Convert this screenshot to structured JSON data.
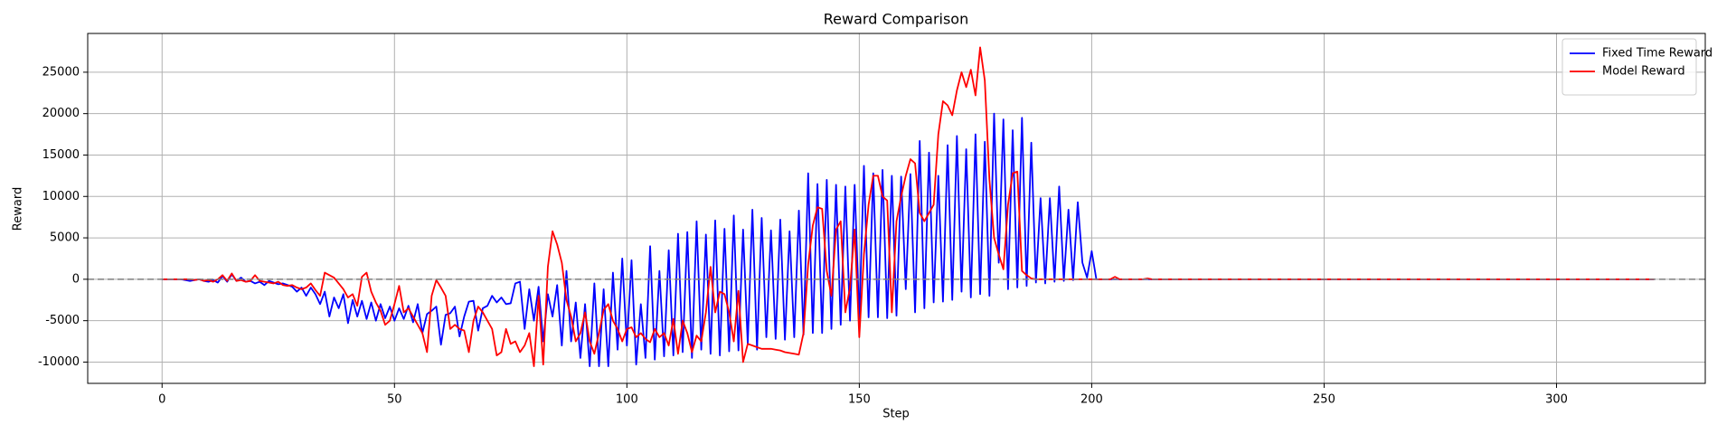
{
  "chart_data": {
    "type": "line",
    "title": "Reward Comparison",
    "x_label": "Step",
    "y_label": "Reward",
    "xlim": [
      -16,
      332
    ],
    "ylim": [
      -12570,
      29680
    ],
    "xticks": [
      0,
      50,
      100,
      150,
      200,
      250,
      300
    ],
    "yticks": [
      -10000,
      -5000,
      0,
      5000,
      10000,
      15000,
      20000,
      25000
    ],
    "grid": true,
    "legend": "upper right",
    "hline": 0,
    "x": [
      0,
      1,
      2,
      3,
      4,
      5,
      6,
      7,
      8,
      9,
      10,
      11,
      12,
      13,
      14,
      15,
      16,
      17,
      18,
      19,
      20,
      21,
      22,
      23,
      24,
      25,
      26,
      27,
      28,
      29,
      30,
      31,
      32,
      33,
      34,
      35,
      36,
      37,
      38,
      39,
      40,
      41,
      42,
      43,
      44,
      45,
      46,
      47,
      48,
      49,
      50,
      51,
      52,
      53,
      54,
      55,
      56,
      57,
      58,
      59,
      60,
      61,
      62,
      63,
      64,
      65,
      66,
      67,
      68,
      69,
      70,
      71,
      72,
      73,
      74,
      75,
      76,
      77,
      78,
      79,
      80,
      81,
      82,
      83,
      84,
      85,
      86,
      87,
      88,
      89,
      90,
      91,
      92,
      93,
      94,
      95,
      96,
      97,
      98,
      99,
      100,
      101,
      102,
      103,
      104,
      105,
      106,
      107,
      108,
      109,
      110,
      111,
      112,
      113,
      114,
      115,
      116,
      117,
      118,
      119,
      120,
      121,
      122,
      123,
      124,
      125,
      126,
      127,
      128,
      129,
      130,
      131,
      132,
      133,
      134,
      135,
      136,
      137,
      138,
      139,
      140,
      141,
      142,
      143,
      144,
      145,
      146,
      147,
      148,
      149,
      150,
      151,
      152,
      153,
      154,
      155,
      156,
      157,
      158,
      159,
      160,
      161,
      162,
      163,
      164,
      165,
      166,
      167,
      168,
      169,
      170,
      171,
      172,
      173,
      174,
      175,
      176,
      177,
      178,
      179,
      180,
      181,
      182,
      183,
      184,
      185,
      186,
      187,
      188,
      189,
      190,
      191,
      192,
      193,
      194,
      195,
      196,
      197,
      198,
      199,
      200,
      201,
      202,
      203,
      204,
      205,
      206,
      207,
      208,
      209,
      210,
      211,
      212,
      213,
      214,
      215,
      216,
      217,
      218,
      219,
      220,
      221,
      222,
      223,
      224,
      225,
      226,
      227,
      228,
      229,
      230,
      231,
      232,
      233,
      234,
      235,
      236,
      237,
      238,
      239,
      240,
      241,
      242,
      243,
      244,
      245,
      246,
      247,
      248,
      249,
      250,
      251,
      252,
      253,
      254,
      255,
      256,
      257,
      258,
      259,
      260,
      261,
      262,
      263,
      264,
      265,
      266,
      267,
      268,
      269,
      270,
      271,
      272,
      273,
      274,
      275,
      276,
      277,
      278,
      279,
      280,
      281,
      282,
      283,
      284,
      285,
      286,
      287,
      288,
      289,
      290,
      291,
      292,
      293,
      294,
      295,
      296,
      297,
      298,
      299,
      300,
      301,
      302,
      303,
      304,
      305,
      306,
      307,
      308,
      309,
      310,
      311,
      312,
      313,
      314,
      315,
      316,
      317,
      318,
      319,
      320,
      321
    ],
    "series": [
      {
        "name": "Fixed Time Reward",
        "color": "#0000ff",
        "values": [
          0,
          0,
          0,
          0,
          0,
          -100,
          -200,
          -100,
          0,
          -200,
          -300,
          -100,
          -400,
          400,
          -300,
          600,
          -200,
          200,
          -300,
          -200,
          -500,
          -300,
          -700,
          -200,
          -400,
          -600,
          -500,
          -700,
          -900,
          -1500,
          -1000,
          -2000,
          -1000,
          -1800,
          -3000,
          -1500,
          -4500,
          -2200,
          -3500,
          -1800,
          -5300,
          -2500,
          -4500,
          -2600,
          -4800,
          -2800,
          -5000,
          -3000,
          -4700,
          -3300,
          -5000,
          -3500,
          -4800,
          -3200,
          -5200,
          -3000,
          -6500,
          -4200,
          -3800,
          -3300,
          -7900,
          -4300,
          -4100,
          -3300,
          -6900,
          -4500,
          -2700,
          -2600,
          -6200,
          -3500,
          -3200,
          -2000,
          -2800,
          -2200,
          -3000,
          -2900,
          -500,
          -300,
          -6000,
          -1200,
          -5000,
          -900,
          -7500,
          -1800,
          -4500,
          -700,
          -8000,
          1000,
          -7500,
          -2800,
          -9500,
          -3000,
          -10500,
          -500,
          -10500,
          -1200,
          -10500,
          800,
          -8500,
          2500,
          -8000,
          2300,
          -10300,
          -3000,
          -9500,
          4000,
          -9700,
          1000,
          -9300,
          3500,
          -9200,
          5500,
          -8800,
          5700,
          -9500,
          7000,
          -8500,
          5400,
          -9000,
          7100,
          -9200,
          6100,
          -8700,
          7700,
          -8600,
          6000,
          -7800,
          8400,
          -8500,
          7400,
          -7000,
          5900,
          -7200,
          7200,
          -7300,
          5800,
          -7000,
          8300,
          -6700,
          12800,
          -6500,
          11500,
          -6500,
          12000,
          -6000,
          11400,
          -5500,
          11200,
          -5000,
          11400,
          -4800,
          13700,
          -4600,
          12800,
          -4600,
          13200,
          -4700,
          12500,
          -4400,
          12400,
          -1200,
          12700,
          -4000,
          16700,
          -3500,
          15300,
          -2800,
          12500,
          -2700,
          16200,
          -2500,
          17300,
          -1500,
          15700,
          -2200,
          17500,
          -1800,
          16600,
          -2000,
          20000,
          2000,
          19300,
          -1200,
          18000,
          -1000,
          19500,
          -800,
          16500,
          -400,
          9800,
          -500,
          9800,
          -300,
          11200,
          -200,
          8400,
          -100,
          9300,
          2000,
          200,
          3400,
          0,
          0,
          0,
          0,
          0,
          0,
          0,
          0,
          0,
          0,
          0,
          0,
          0,
          0,
          0,
          0,
          0,
          0,
          0,
          0,
          0,
          0,
          0,
          0,
          0,
          0,
          0,
          0,
          0,
          0,
          0,
          0,
          0,
          0,
          0,
          0,
          0,
          0,
          0,
          0,
          0,
          0,
          0,
          0,
          0,
          0,
          0,
          0,
          0,
          0,
          0,
          0,
          0,
          0,
          0,
          0,
          0,
          0,
          0,
          0,
          0,
          0,
          0,
          0,
          0,
          0,
          0,
          0,
          0,
          0,
          0,
          0,
          0,
          0,
          0,
          0,
          0,
          0,
          0,
          0,
          0,
          0,
          0,
          0,
          0,
          0,
          0,
          0,
          0,
          0,
          0,
          0,
          0,
          0,
          0,
          0,
          0,
          0,
          0,
          0,
          0,
          0,
          0,
          0,
          0,
          0,
          0,
          0,
          0,
          0,
          0,
          0,
          0,
          0,
          0,
          0,
          0,
          0,
          0,
          0,
          0
        ]
      },
      {
        "name": "Model Reward",
        "color": "#ff0000",
        "values": [
          0,
          0,
          0,
          0,
          0,
          0,
          0,
          -100,
          0,
          -200,
          -100,
          -300,
          0,
          500,
          -200,
          700,
          -200,
          -100,
          -300,
          -200,
          500,
          -200,
          -300,
          -400,
          -500,
          -300,
          -700,
          -800,
          -700,
          -1000,
          -1200,
          -1000,
          -500,
          -1300,
          -2000,
          800,
          500,
          200,
          -500,
          -1200,
          -2200,
          -1800,
          -3200,
          300,
          800,
          -1500,
          -2800,
          -3800,
          -5500,
          -5000,
          -3000,
          -800,
          -4000,
          -3500,
          -4500,
          -5500,
          -6500,
          -8800,
          -2000,
          -100,
          -1000,
          -2000,
          -6000,
          -5500,
          -6000,
          -6200,
          -8800,
          -5000,
          -3300,
          -4000,
          -5000,
          -6000,
          -9200,
          -8800,
          -6000,
          -7800,
          -7500,
          -8800,
          -8000,
          -6500,
          -10500,
          -2000,
          -10300,
          1500,
          5800,
          4200,
          2000,
          -2500,
          -4500,
          -7500,
          -6500,
          -4000,
          -7500,
          -9000,
          -6500,
          -3700,
          -3000,
          -5000,
          -6000,
          -7500,
          -6000,
          -5800,
          -7000,
          -6500,
          -7200,
          -7600,
          -6000,
          -7000,
          -6500,
          -8000,
          -4800,
          -9000,
          -5000,
          -6500,
          -8800,
          -6800,
          -7500,
          -4000,
          1500,
          -4000,
          -1500,
          -1800,
          -4000,
          -7500,
          -1400,
          -10000,
          -7800,
          -8000,
          -8200,
          -8400,
          -8400,
          -8400,
          -8500,
          -8600,
          -8800,
          -8900,
          -9000,
          -9100,
          -6500,
          1800,
          6500,
          8700,
          8500,
          1000,
          -2000,
          6000,
          7000,
          -4000,
          -1000,
          6000,
          -7000,
          3000,
          9000,
          12500,
          12500,
          10000,
          9500,
          -4000,
          7000,
          10000,
          12500,
          14500,
          14000,
          8000,
          7000,
          8000,
          9000,
          17500,
          21500,
          21000,
          19800,
          22800,
          25000,
          23200,
          25300,
          22200,
          28000,
          24000,
          12000,
          5000,
          3000,
          1200,
          9000,
          12800,
          13000,
          1000,
          500,
          100,
          0,
          0,
          0,
          0,
          0,
          0,
          0,
          0,
          0,
          0,
          0,
          0,
          0,
          0,
          0,
          0,
          0,
          300,
          0,
          0,
          0,
          0,
          0,
          0,
          100,
          0,
          0,
          0,
          0,
          0,
          0,
          0,
          0,
          0,
          0,
          0,
          0,
          0,
          0,
          0,
          0,
          0,
          0,
          0,
          0,
          0,
          0,
          0,
          0,
          0,
          0,
          0,
          0,
          0,
          0,
          0,
          0,
          0,
          0,
          0,
          0,
          0,
          0,
          0,
          0,
          0,
          0,
          0,
          0,
          0,
          0,
          0,
          0,
          0,
          0,
          0,
          0,
          0,
          0,
          0,
          0,
          0,
          0,
          0,
          0,
          0,
          0,
          0,
          0,
          0,
          0,
          0,
          0,
          0,
          0,
          0,
          0,
          0,
          0,
          0,
          0,
          0,
          0,
          0,
          0,
          0,
          0,
          0,
          0,
          0,
          0,
          0,
          0,
          0,
          0,
          0,
          0,
          0,
          0,
          0,
          0,
          0,
          0,
          0,
          0,
          0,
          0,
          0,
          0,
          0,
          0,
          0,
          0,
          0
        ]
      }
    ]
  }
}
